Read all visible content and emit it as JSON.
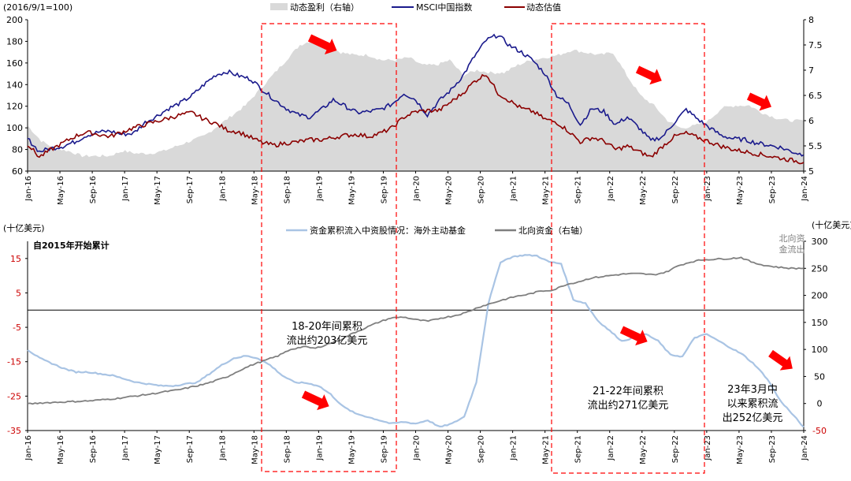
{
  "chart_data": [
    {
      "type": "line",
      "title": "",
      "units_note": "(2016/9/1=100)",
      "ylim": [
        60,
        200
      ],
      "y_ticks": [
        60,
        80,
        100,
        120,
        140,
        160,
        180,
        200
      ],
      "y2lim": [
        5,
        8
      ],
      "y2_ticks": [
        "5",
        "5.5",
        "6",
        "6.5",
        "7",
        "7.5",
        "8"
      ],
      "x_ticks": [
        "Jan-16",
        "May-16",
        "Sep-16",
        "Jan-17",
        "May-17",
        "Sep-17",
        "Jan-18",
        "May-18",
        "Sep-18",
        "Jan-19",
        "May-19",
        "Sep-19",
        "Jan-20",
        "May-20",
        "Sep-20",
        "Jan-21",
        "May-21",
        "Sep-21",
        "Jan-22",
        "May-22",
        "Sep-22",
        "Jan-23",
        "May-23",
        "Sep-23",
        "Jan-24"
      ],
      "legend_position": "top",
      "series": [
        {
          "name": "动态盈利（右轴）",
          "color": "#d9d9d9",
          "axis": "right",
          "kind": "area",
          "values": [
            5.9,
            5.6,
            5.45,
            5.4,
            5.3,
            5.3,
            5.3,
            5.4,
            5.35,
            5.35,
            5.4,
            5.5,
            5.6,
            5.7,
            5.9,
            6.1,
            6.3,
            6.6,
            6.9,
            7.2,
            7.5,
            7.6,
            7.5,
            7.35,
            7.3,
            7.3,
            7.2,
            7.2,
            7.25,
            7.1,
            7.1,
            7.2,
            6.9,
            7.0,
            6.95,
            6.95,
            7.1,
            7.2,
            7.25,
            7.3,
            7.4,
            7.35,
            7.3,
            7.35,
            6.9,
            6.5,
            6.3,
            6.0,
            5.85,
            5.9,
            6.0,
            6.25,
            6.3,
            6.3,
            6.15,
            6.05,
            6.0,
            6.0
          ]
        },
        {
          "name": "MSCI中国指数",
          "color": "#1a1a8c",
          "axis": "left",
          "kind": "line",
          "values": [
            90,
            78,
            81,
            83,
            87,
            93,
            96,
            97,
            94,
            95,
            105,
            111,
            118,
            123,
            130,
            140,
            149,
            152,
            148,
            145,
            135,
            126,
            118,
            112,
            110,
            117,
            126,
            120,
            114,
            115,
            117,
            122,
            132,
            126,
            112,
            125,
            135,
            148,
            166,
            181,
            186,
            176,
            170,
            162,
            150,
            130,
            122,
            103,
            118,
            115,
            103,
            110,
            100,
            88,
            92,
            105,
            117,
            108,
            100,
            93,
            90,
            89,
            86,
            84,
            82,
            78,
            75
          ]
        },
        {
          "name": "动态估值",
          "color": "#8b0000",
          "axis": "left",
          "kind": "line",
          "values": [
            85,
            73,
            80,
            86,
            92,
            96,
            94,
            92,
            96,
            100,
            103,
            106,
            109,
            112,
            114,
            108,
            104,
            98,
            96,
            91,
            86,
            84,
            86,
            87,
            89,
            89,
            91,
            93,
            94,
            92,
            95,
            100,
            110,
            115,
            116,
            116,
            124,
            132,
            143,
            150,
            132,
            125,
            118,
            115,
            108,
            105,
            97,
            87,
            91,
            88,
            80,
            83,
            78,
            73,
            83,
            92,
            95,
            91,
            87,
            83,
            80,
            78,
            76,
            74,
            72,
            70,
            68
          ]
        }
      ]
    },
    {
      "type": "line",
      "title": "自2015年开始累计",
      "ylabel": "(十亿美元)",
      "y2label": "(十亿美元)",
      "ylim": [
        -35,
        20
      ],
      "y_ticks": [
        "-35",
        "-25",
        "-15",
        "-5",
        "5",
        "15"
      ],
      "y2lim": [
        -50,
        300
      ],
      "y2_ticks": [
        "-50",
        "0",
        "50",
        "100",
        "150",
        "200",
        "250",
        "300"
      ],
      "x_ticks": [
        "Jan-16",
        "May-16",
        "Sep-16",
        "Jan-17",
        "May-17",
        "Sep-17",
        "Jan-18",
        "May-18",
        "Sep-18",
        "Jan-19",
        "May-19",
        "Sep-19",
        "Jan-20",
        "May-20",
        "Sep-20",
        "Jan-21",
        "May-21",
        "Sep-21",
        "Jan-22",
        "May-22",
        "Sep-22",
        "Jan-23",
        "May-23",
        "Sep-23",
        "Jan-24"
      ],
      "legend_position": "top",
      "series": [
        {
          "name": "资金累积流入中资股情况：海外主动基金",
          "color": "#a9c4e4",
          "axis": "left",
          "values": [
            -11.5,
            -14,
            -15.5,
            -17,
            -18,
            -18,
            -18.5,
            -19,
            -20,
            -21,
            -21.5,
            -22,
            -22,
            -21.5,
            -21,
            -18.5,
            -16,
            -14,
            -13.3,
            -14,
            -16,
            -19,
            -21,
            -21.2,
            -22,
            -24.5,
            -28,
            -30,
            -31,
            -32,
            -33,
            -32.5,
            -33,
            -32,
            -34,
            -33,
            -31,
            -21,
            2,
            14,
            15.5,
            16,
            15.8,
            14,
            13.5,
            3,
            2,
            -3,
            -6,
            -9,
            -8,
            -7,
            -9,
            -13,
            -13.5,
            -8,
            -7,
            -9,
            -11,
            -13,
            -16,
            -20,
            -26,
            -30,
            -34
          ]
        },
        {
          "name": "北向资金（右轴）",
          "color": "#7f7f7f",
          "axis": "right",
          "values": [
            -1,
            1,
            2,
            3,
            4,
            5,
            7,
            9,
            12,
            15,
            18,
            22,
            25,
            30,
            35,
            42,
            50,
            62,
            72,
            80,
            88,
            100,
            105,
            102,
            110,
            118,
            130,
            140,
            150,
            158,
            160,
            155,
            152,
            158,
            162,
            168,
            178,
            185,
            192,
            198,
            202,
            208,
            210,
            220,
            225,
            232,
            235,
            238,
            240,
            240,
            238,
            243,
            255,
            262,
            266,
            267,
            268,
            270,
            260,
            255,
            252,
            250,
            250
          ]
        }
      ]
    }
  ],
  "annotations": {
    "top_arrows": [
      "→",
      "→",
      "→"
    ],
    "bottom_note_1": "18-20年间累积\n流出约203亿美元",
    "bottom_note_2": "21-22年间累积\n流出约271亿美元",
    "bottom_note_3": "23年3月中\n以来累积流\n出252亿美元",
    "northbound_note": "北向资\n金流出"
  }
}
